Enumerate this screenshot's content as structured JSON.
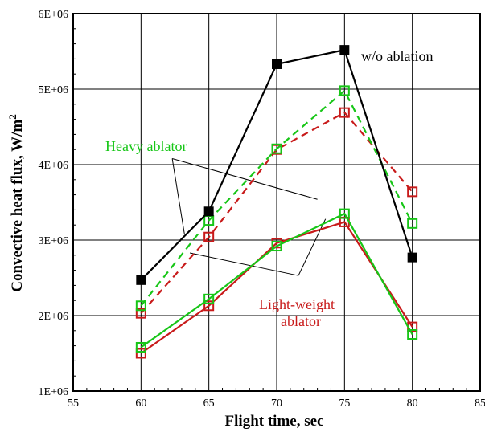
{
  "chart_data": {
    "type": "line",
    "title": "",
    "xlabel": "Flight time, sec",
    "ylabel": "Convective heat flux, W/m",
    "ylabel_superscript": "2",
    "xlim": [
      55,
      85
    ],
    "ylim": [
      1000000,
      6000000
    ],
    "xticks": [
      55,
      60,
      65,
      70,
      75,
      80,
      85
    ],
    "yticks": [
      1000000,
      2000000,
      3000000,
      4000000,
      5000000,
      6000000
    ],
    "ytick_labels": [
      "1E+06",
      "2E+06",
      "3E+06",
      "4E+06",
      "5E+06",
      "6E+06"
    ],
    "grid": true,
    "x": [
      60,
      65,
      70,
      75,
      80
    ],
    "series": [
      {
        "key": "wo",
        "color": "#000000",
        "dash": false,
        "marker": "filled-square",
        "values": [
          2470000,
          3380000,
          5330000,
          5520000,
          2770000
        ]
      },
      {
        "key": "heavy_dashed",
        "color": "#17c617",
        "dash": true,
        "marker": "open-square",
        "values": [
          2130000,
          3260000,
          4210000,
          4980000,
          3220000
        ]
      },
      {
        "key": "light_dashed",
        "color": "#c81a1a",
        "dash": true,
        "marker": "open-square",
        "values": [
          2030000,
          3040000,
          4200000,
          4690000,
          3640000
        ]
      },
      {
        "key": "heavy_solid",
        "color": "#17c617",
        "dash": false,
        "marker": "open-square",
        "values": [
          1580000,
          2220000,
          2920000,
          3350000,
          1750000
        ]
      },
      {
        "key": "light_solid",
        "color": "#c81a1a",
        "dash": false,
        "marker": "open-square",
        "values": [
          1500000,
          2130000,
          2960000,
          3240000,
          1850000
        ]
      }
    ],
    "annotations": [
      {
        "text": "w/o ablation",
        "color": "#000000"
      },
      {
        "text": "Heavy ablator",
        "color": "#17c617"
      },
      {
        "text": "Light-weight",
        "color": "#c81a1a"
      },
      {
        "text": "ablator",
        "color": "#c81a1a"
      }
    ]
  }
}
